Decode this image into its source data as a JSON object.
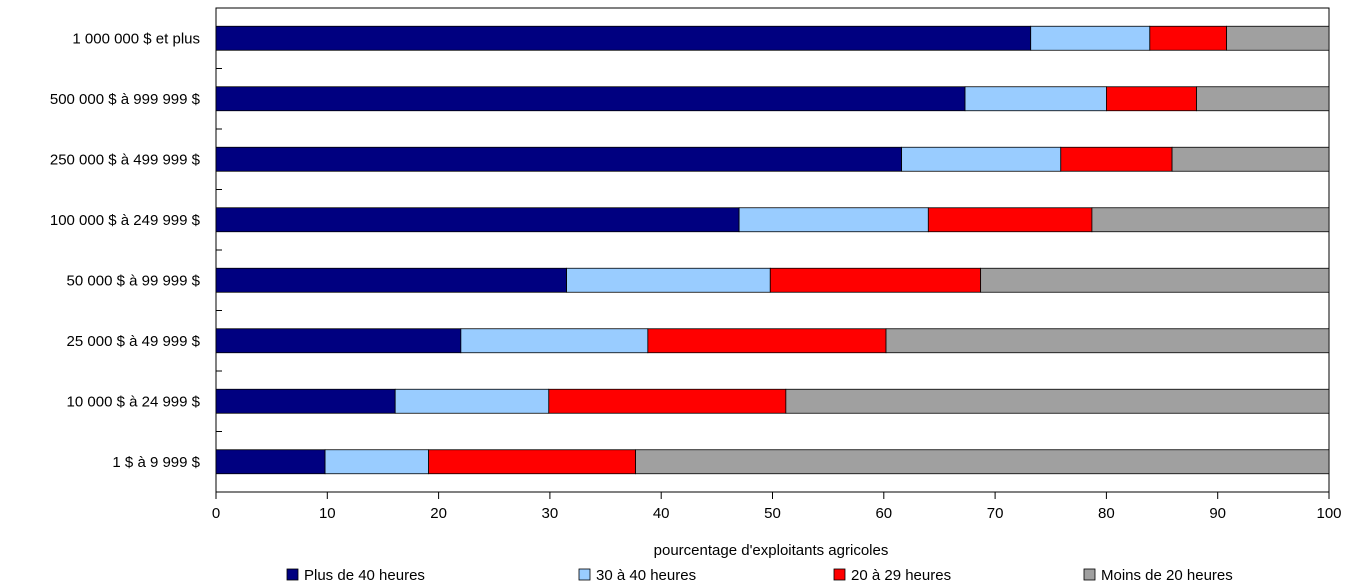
{
  "chart_data": {
    "type": "bar",
    "orientation": "horizontal",
    "stacked": true,
    "categories": [
      "1 000 000 $ et plus",
      "500 000 $ à 999 999 $",
      "250 000 $ à 499 999 $",
      "100 000 $ à 249 999 $",
      "50 000 $ à 99 999 $",
      "25 000 $ à 49 999 $",
      "10 000 $ à 24 999 $",
      "1 $ à 9 999 $"
    ],
    "series": [
      {
        "name": "Plus de 40 heures",
        "color": "#000080",
        "values": [
          73.2,
          67.3,
          61.6,
          47.0,
          31.5,
          22.0,
          16.1,
          9.8
        ]
      },
      {
        "name": "30 à 40 heures",
        "color": "#99ccff",
        "values": [
          10.7,
          12.7,
          14.3,
          17.0,
          18.3,
          16.8,
          13.8,
          9.3
        ]
      },
      {
        "name": "20 à 29 heures",
        "color": "#ff0000",
        "values": [
          6.9,
          8.1,
          10.0,
          14.7,
          18.9,
          21.4,
          21.3,
          18.6
        ]
      },
      {
        "name": "Moins de 20 heures",
        "color": "#a0a0a0",
        "values": [
          9.2,
          11.9,
          14.1,
          21.3,
          31.3,
          39.8,
          48.8,
          62.3
        ]
      }
    ],
    "xlabel": "pourcentage d'exploitants agricoles",
    "xlim": [
      0,
      100
    ],
    "xticks": [
      0,
      10,
      20,
      30,
      40,
      50,
      60,
      70,
      80,
      90,
      100
    ],
    "grid": false,
    "legend_position": "bottom"
  }
}
